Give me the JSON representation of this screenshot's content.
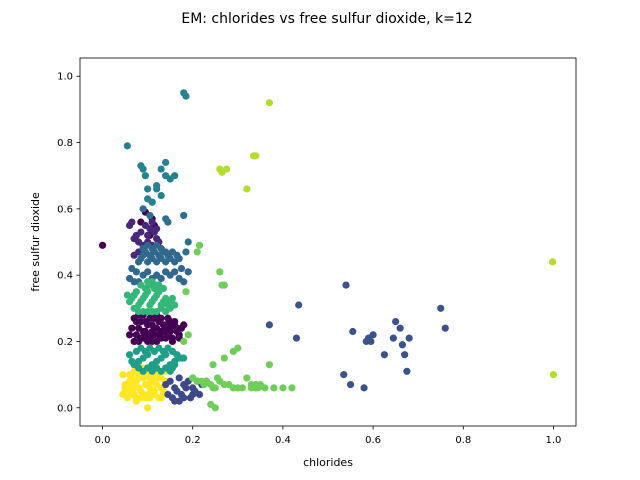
{
  "chart_data": {
    "type": "scatter",
    "title": "EM: chlorides vs free sulfur dioxide, k=12",
    "xlabel": "chlorides",
    "ylabel": "free sulfur dioxide",
    "xlim": [
      -0.05,
      1.05
    ],
    "ylim": [
      -0.055,
      1.055
    ],
    "xticks": [
      "0.0",
      "0.2",
      "0.4",
      "0.6",
      "0.8",
      "1.0"
    ],
    "yticks": [
      "0.0",
      "0.2",
      "0.4",
      "0.6",
      "0.8",
      "1.0"
    ],
    "grid": false,
    "clusters": [
      {
        "color": "#fde725",
        "x": [
          0.045,
          0.05,
          0.055,
          0.06,
          0.065,
          0.07,
          0.075,
          0.08,
          0.085,
          0.09,
          0.095,
          0.1,
          0.105,
          0.11,
          0.115,
          0.12,
          0.125,
          0.13,
          0.135,
          0.14,
          0.05,
          0.06,
          0.07,
          0.08,
          0.09,
          0.1,
          0.11,
          0.12,
          0.13,
          0.14,
          0.055,
          0.065,
          0.075,
          0.085,
          0.095,
          0.105,
          0.115,
          0.125,
          0.135,
          0.045,
          0.07,
          0.09,
          0.11,
          0.13,
          0.06,
          0.08,
          0.1,
          0.12,
          0.075,
          0.095,
          0.115,
          0.085,
          0.105,
          0.05,
          0.065,
          0.125,
          0.1
        ],
        "y": [
          0.04,
          0.05,
          0.06,
          0.05,
          0.07,
          0.04,
          0.08,
          0.06,
          0.05,
          0.09,
          0.07,
          0.04,
          0.06,
          0.08,
          0.05,
          0.07,
          0.09,
          0.06,
          0.04,
          0.08,
          0.07,
          0.1,
          0.11,
          0.1,
          0.12,
          0.1,
          0.11,
          0.1,
          0.09,
          0.11,
          0.03,
          0.04,
          0.03,
          0.03,
          0.03,
          0.03,
          0.04,
          0.03,
          0.05,
          0.1,
          0.06,
          0.04,
          0.05,
          0.03,
          0.08,
          0.09,
          0.07,
          0.12,
          0.02,
          0.11,
          0.09,
          0.12,
          0.09,
          0.06,
          0.09,
          0.11,
          0.0
        ]
      },
      {
        "color": "#440154",
        "x": [
          0.07,
          0.075,
          0.08,
          0.085,
          0.09,
          0.095,
          0.1,
          0.105,
          0.11,
          0.115,
          0.12,
          0.125,
          0.13,
          0.135,
          0.14,
          0.145,
          0.15,
          0.155,
          0.16,
          0.165,
          0.17,
          0.175,
          0.18,
          0.065,
          0.08,
          0.09,
          0.1,
          0.11,
          0.12,
          0.13,
          0.14,
          0.15,
          0.16,
          0.17,
          0.07,
          0.085,
          0.095,
          0.105,
          0.115,
          0.125,
          0.135,
          0.145,
          0.155,
          0.165,
          0.06,
          0.075,
          0.09,
          0.11,
          0.13,
          0.15,
          0.08,
          0.1,
          0.12,
          0.14,
          0.11,
          0.085,
          0.095,
          0.105,
          0.115,
          0.0
        ],
        "y": [
          0.2,
          0.22,
          0.24,
          0.26,
          0.21,
          0.23,
          0.25,
          0.27,
          0.2,
          0.22,
          0.24,
          0.26,
          0.21,
          0.23,
          0.25,
          0.22,
          0.24,
          0.2,
          0.26,
          0.23,
          0.21,
          0.24,
          0.25,
          0.24,
          0.2,
          0.28,
          0.22,
          0.25,
          0.2,
          0.27,
          0.21,
          0.23,
          0.25,
          0.22,
          0.27,
          0.21,
          0.26,
          0.21,
          0.27,
          0.22,
          0.25,
          0.27,
          0.21,
          0.24,
          0.22,
          0.26,
          0.23,
          0.23,
          0.23,
          0.26,
          0.28,
          0.2,
          0.28,
          0.24,
          0.57,
          0.56,
          0.59,
          0.52,
          0.55,
          0.49
        ]
      },
      {
        "color": "#482878",
        "x": [
          0.07,
          0.08,
          0.09,
          0.1,
          0.11,
          0.12,
          0.075,
          0.085,
          0.095,
          0.105,
          0.115,
          0.125,
          0.06,
          0.065,
          0.13,
          0.07,
          0.08,
          0.09,
          0.1,
          0.11,
          0.12
        ],
        "y": [
          0.46,
          0.47,
          0.48,
          0.5,
          0.49,
          0.51,
          0.52,
          0.53,
          0.55,
          0.54,
          0.53,
          0.5,
          0.55,
          0.56,
          0.48,
          0.51,
          0.5,
          0.49,
          0.52,
          0.56,
          0.54
        ]
      },
      {
        "color": "#3e4989",
        "x": [
          0.14,
          0.15,
          0.16,
          0.17,
          0.18,
          0.19,
          0.2,
          0.21,
          0.22,
          0.23,
          0.145,
          0.155,
          0.165,
          0.175,
          0.185,
          0.195,
          0.205,
          0.215,
          0.16,
          0.18,
          0.2,
          0.17
        ],
        "y": [
          0.07,
          0.08,
          0.06,
          0.09,
          0.07,
          0.08,
          0.06,
          0.08,
          0.07,
          0.08,
          0.04,
          0.03,
          0.05,
          0.04,
          0.06,
          0.03,
          0.05,
          0.04,
          0.02,
          0.03,
          0.04,
          0.02
        ]
      },
      {
        "color": "#31688e",
        "x": [
          0.08,
          0.085,
          0.09,
          0.095,
          0.1,
          0.105,
          0.11,
          0.115,
          0.12,
          0.125,
          0.13,
          0.135,
          0.14,
          0.145,
          0.15,
          0.155,
          0.16,
          0.165,
          0.17,
          0.175,
          0.18,
          0.06,
          0.065,
          0.07,
          0.075,
          0.08,
          0.09,
          0.1,
          0.11,
          0.12,
          0.13,
          0.14,
          0.15,
          0.16,
          0.17,
          0.19,
          0.09,
          0.1,
          0.11,
          0.12,
          0.13,
          0.14
        ],
        "y": [
          0.44,
          0.45,
          0.46,
          0.47,
          0.44,
          0.46,
          0.45,
          0.47,
          0.44,
          0.46,
          0.45,
          0.47,
          0.44,
          0.46,
          0.45,
          0.47,
          0.44,
          0.46,
          0.45,
          0.42,
          0.38,
          0.39,
          0.42,
          0.38,
          0.41,
          0.38,
          0.4,
          0.41,
          0.39,
          0.4,
          0.39,
          0.41,
          0.4,
          0.41,
          0.39,
          0.41,
          0.48,
          0.49,
          0.48,
          0.49,
          0.48,
          0.47
        ]
      },
      {
        "color": "#26828e",
        "x": [
          0.055,
          0.085,
          0.09,
          0.095,
          0.1,
          0.1,
          0.11,
          0.12,
          0.13,
          0.14,
          0.14,
          0.15,
          0.16,
          0.12,
          0.13,
          0.11,
          0.18,
          0.185
        ],
        "y": [
          0.79,
          0.73,
          0.72,
          0.7,
          0.66,
          0.63,
          0.62,
          0.66,
          0.72,
          0.74,
          0.7,
          0.69,
          0.7,
          0.67,
          0.64,
          0.62,
          0.95,
          0.94
        ]
      },
      {
        "color": "#1f9e89",
        "x": [
          0.07,
          0.08,
          0.09,
          0.1,
          0.11,
          0.12,
          0.13,
          0.14,
          0.15,
          0.16,
          0.17,
          0.075,
          0.085,
          0.095,
          0.105,
          0.115,
          0.125,
          0.135,
          0.145,
          0.155,
          0.165,
          0.06,
          0.18,
          0.065,
          0.155,
          0.08,
          0.1,
          0.12,
          0.14,
          0.16,
          0.09,
          0.11,
          0.13,
          0.15,
          0.175
        ],
        "y": [
          0.13,
          0.14,
          0.15,
          0.16,
          0.13,
          0.14,
          0.15,
          0.16,
          0.13,
          0.14,
          0.15,
          0.17,
          0.18,
          0.17,
          0.18,
          0.17,
          0.18,
          0.17,
          0.18,
          0.17,
          0.16,
          0.16,
          0.15,
          0.14,
          0.12,
          0.12,
          0.12,
          0.12,
          0.12,
          0.13,
          0.11,
          0.11,
          0.11,
          0.11,
          0.15
        ]
      },
      {
        "color": "#35b779",
        "x": [
          0.06,
          0.065,
          0.07,
          0.075,
          0.08,
          0.085,
          0.09,
          0.095,
          0.1,
          0.105,
          0.11,
          0.115,
          0.12,
          0.125,
          0.13,
          0.135,
          0.14,
          0.145,
          0.15,
          0.155,
          0.07,
          0.08,
          0.09,
          0.1,
          0.11,
          0.12,
          0.13,
          0.14,
          0.15,
          0.16,
          0.085,
          0.095,
          0.105,
          0.115,
          0.125,
          0.135,
          0.1,
          0.11,
          0.12,
          0.055
        ],
        "y": [
          0.32,
          0.33,
          0.34,
          0.35,
          0.31,
          0.32,
          0.33,
          0.34,
          0.35,
          0.31,
          0.32,
          0.33,
          0.34,
          0.35,
          0.31,
          0.32,
          0.33,
          0.31,
          0.32,
          0.33,
          0.3,
          0.29,
          0.29,
          0.29,
          0.29,
          0.29,
          0.3,
          0.29,
          0.3,
          0.31,
          0.37,
          0.36,
          0.37,
          0.36,
          0.37,
          0.36,
          0.38,
          0.38,
          0.37,
          0.34
        ]
      },
      {
        "color": "#6ece58",
        "x": [
          0.185,
          0.19,
          0.2,
          0.21,
          0.22,
          0.225,
          0.23,
          0.24,
          0.245,
          0.25,
          0.255,
          0.26,
          0.27,
          0.28,
          0.29,
          0.3,
          0.31,
          0.32,
          0.33,
          0.34,
          0.345,
          0.35,
          0.36,
          0.38,
          0.4,
          0.42,
          0.24,
          0.25,
          0.27,
          0.29,
          0.3,
          0.37,
          0.18,
          0.2,
          0.265,
          0.27,
          0.21,
          0.215,
          0.26,
          0.33,
          0.34,
          0.245
        ],
        "y": [
          0.35,
          0.22,
          0.09,
          0.08,
          0.08,
          0.07,
          0.08,
          0.07,
          0.06,
          0.06,
          0.09,
          0.08,
          0.07,
          0.07,
          0.06,
          0.06,
          0.06,
          0.09,
          0.06,
          0.07,
          0.06,
          0.07,
          0.06,
          0.06,
          0.06,
          0.06,
          0.01,
          0.0,
          0.15,
          0.17,
          0.18,
          0.13,
          0.2,
          0.09,
          0.37,
          0.37,
          0.47,
          0.49,
          0.41,
          0.07,
          0.06,
          0.13
        ]
      },
      {
        "color": "#b5de2b",
        "x": [
          0.26,
          0.265,
          0.275,
          0.32,
          0.335,
          0.34,
          0.37,
          0.998,
          1.0
        ],
        "y": [
          0.72,
          0.71,
          0.72,
          0.66,
          0.76,
          0.76,
          0.92,
          0.44,
          0.1
        ]
      },
      {
        "color": "#2d708e",
        "x": [
          0.09,
          0.105,
          0.14,
          0.145,
          0.18,
          0.19,
          0.185
        ],
        "y": [
          0.6,
          0.58,
          0.57,
          0.56,
          0.58,
          0.5,
          0.47
        ]
      },
      {
        "color": "#3b528b",
        "x": [
          0.37,
          0.43,
          0.435,
          0.535,
          0.54,
          0.55,
          0.555,
          0.58,
          0.585,
          0.59,
          0.595,
          0.6,
          0.625,
          0.645,
          0.65,
          0.66,
          0.665,
          0.67,
          0.675,
          0.68,
          0.75,
          0.76
        ],
        "y": [
          0.25,
          0.21,
          0.31,
          0.1,
          0.37,
          0.07,
          0.23,
          0.06,
          0.2,
          0.21,
          0.2,
          0.22,
          0.16,
          0.21,
          0.26,
          0.24,
          0.19,
          0.16,
          0.11,
          0.21,
          0.3,
          0.24
        ]
      }
    ]
  }
}
